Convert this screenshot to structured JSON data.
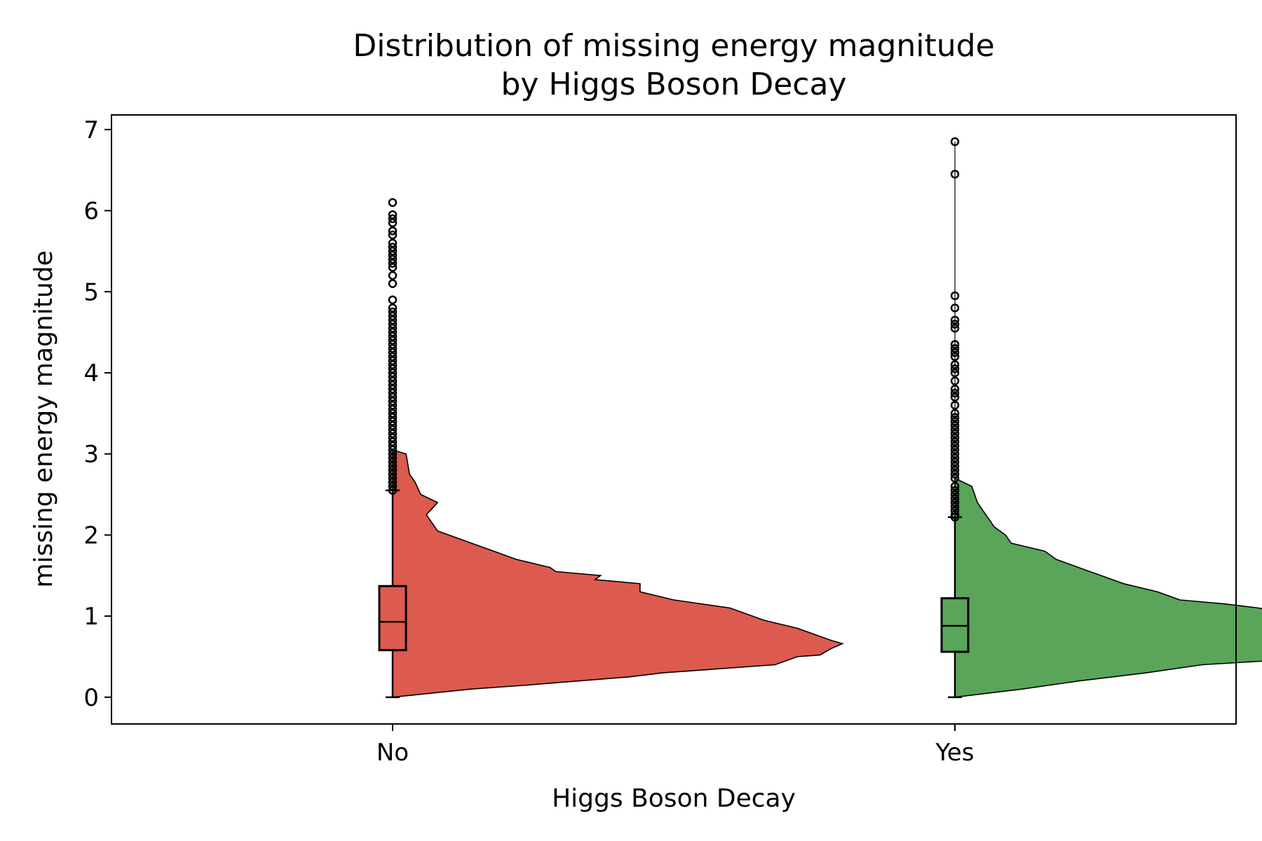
{
  "chart_data": {
    "type": "violin",
    "title_lines": [
      "Distribution of missing energy magnitude",
      "by Higgs Boson Decay"
    ],
    "xlabel": "Higgs Boson Decay",
    "ylabel": "missing energy magnitude",
    "categories": [
      "No",
      "Yes"
    ],
    "y_ticks": [
      0,
      1,
      2,
      3,
      4,
      5,
      6,
      7
    ],
    "ylim": [
      -0.33,
      7.18
    ],
    "xlim": [
      -0.5,
      1.5
    ],
    "grid": false,
    "legend": "none",
    "colors": {
      "No": "#dd5a4e",
      "Yes": "#5aa55a"
    },
    "groups": [
      {
        "name": "No",
        "box": {
          "whisker_low": 0.0,
          "q1": 0.58,
          "median": 0.93,
          "q3": 1.37,
          "whisker_high": 2.55
        },
        "density": [
          [
            0.0,
            0.0
          ],
          [
            0.1,
            0.07
          ],
          [
            0.15,
            0.12
          ],
          [
            0.25,
            0.21
          ],
          [
            0.3,
            0.24
          ],
          [
            0.4,
            0.34
          ],
          [
            0.5,
            0.36
          ],
          [
            0.52,
            0.38
          ],
          [
            0.6,
            0.39
          ],
          [
            0.66,
            0.4
          ],
          [
            0.7,
            0.39
          ],
          [
            0.75,
            0.38
          ],
          [
            0.85,
            0.36
          ],
          [
            0.95,
            0.33
          ],
          [
            1.1,
            0.3
          ],
          [
            1.2,
            0.25
          ],
          [
            1.3,
            0.22
          ],
          [
            1.4,
            0.22
          ],
          [
            1.45,
            0.18
          ],
          [
            1.5,
            0.185
          ],
          [
            1.55,
            0.145
          ],
          [
            1.6,
            0.14
          ],
          [
            1.7,
            0.11
          ],
          [
            1.8,
            0.09
          ],
          [
            1.9,
            0.07
          ],
          [
            2.0,
            0.05
          ],
          [
            2.05,
            0.04
          ],
          [
            2.15,
            0.035
          ],
          [
            2.25,
            0.03
          ],
          [
            2.4,
            0.04
          ],
          [
            2.5,
            0.025
          ],
          [
            2.65,
            0.02
          ],
          [
            2.75,
            0.015
          ],
          [
            3.0,
            0.012
          ],
          [
            3.05,
            0.0
          ]
        ],
        "outliers": [
          2.55,
          2.6,
          2.65,
          2.7,
          2.75,
          2.8,
          2.85,
          2.9,
          2.95,
          3.0,
          3.05,
          3.1,
          3.15,
          3.2,
          3.25,
          3.3,
          3.35,
          3.4,
          3.45,
          3.5,
          3.55,
          3.6,
          3.65,
          3.7,
          3.75,
          3.8,
          3.85,
          3.9,
          3.95,
          4.0,
          4.05,
          4.1,
          4.15,
          4.2,
          4.25,
          4.3,
          4.35,
          4.4,
          4.45,
          4.5,
          4.55,
          4.6,
          4.65,
          4.7,
          4.75,
          4.8,
          4.9,
          5.1,
          5.2,
          5.3,
          5.35,
          5.4,
          5.45,
          5.5,
          5.55,
          5.6,
          5.7,
          5.75,
          5.85,
          5.9,
          5.95,
          6.1
        ]
      },
      {
        "name": "Yes",
        "box": {
          "whisker_low": 0.0,
          "q1": 0.56,
          "median": 0.88,
          "q3": 1.22,
          "whisker_high": 2.22
        },
        "density": [
          [
            0.0,
            0.0
          ],
          [
            0.1,
            0.06
          ],
          [
            0.2,
            0.11
          ],
          [
            0.3,
            0.17
          ],
          [
            0.4,
            0.22
          ],
          [
            0.45,
            0.28
          ],
          [
            0.5,
            0.36
          ],
          [
            0.55,
            0.37
          ],
          [
            0.6,
            0.38
          ],
          [
            0.7,
            0.39
          ],
          [
            0.78,
            0.4
          ],
          [
            0.85,
            0.39
          ],
          [
            0.9,
            0.38
          ],
          [
            1.0,
            0.31
          ],
          [
            1.1,
            0.27
          ],
          [
            1.15,
            0.24
          ],
          [
            1.2,
            0.2
          ],
          [
            1.3,
            0.18
          ],
          [
            1.4,
            0.15
          ],
          [
            1.5,
            0.13
          ],
          [
            1.6,
            0.11
          ],
          [
            1.7,
            0.09
          ],
          [
            1.8,
            0.08
          ],
          [
            1.9,
            0.05
          ],
          [
            2.0,
            0.045
          ],
          [
            2.1,
            0.035
          ],
          [
            2.2,
            0.03
          ],
          [
            2.3,
            0.025
          ],
          [
            2.4,
            0.02
          ],
          [
            2.6,
            0.015
          ],
          [
            2.7,
            0.0
          ]
        ],
        "outliers": [
          2.22,
          2.25,
          2.3,
          2.35,
          2.4,
          2.45,
          2.5,
          2.55,
          2.6,
          2.7,
          2.75,
          2.8,
          2.85,
          2.9,
          2.95,
          3.0,
          3.05,
          3.1,
          3.15,
          3.2,
          3.25,
          3.3,
          3.35,
          3.4,
          3.45,
          3.5,
          3.6,
          3.7,
          3.75,
          3.8,
          3.9,
          4.0,
          4.05,
          4.1,
          4.2,
          4.25,
          4.3,
          4.35,
          4.55,
          4.6,
          4.65,
          4.8,
          4.95,
          6.45,
          6.85
        ]
      }
    ]
  }
}
